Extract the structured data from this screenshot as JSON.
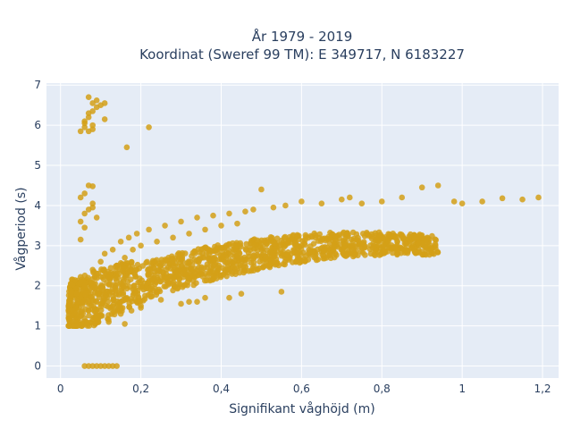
{
  "chart_data": {
    "type": "scatter",
    "title_lines": [
      "År 1979 - 2019",
      "Koordinat (Sweref 99 TM): E 349717, N 6183227"
    ],
    "xlabel": "Signifikant våghöjd (m)",
    "ylabel": "Vågperiod (s)",
    "xlim": [
      -0.035,
      1.24
    ],
    "ylim": [
      -0.3,
      7.05
    ],
    "xticks": [
      0,
      0.2,
      0.4,
      0.6,
      0.8,
      1,
      1.2
    ],
    "xtick_labels": [
      "0",
      "0,2",
      "0,4",
      "0,6",
      "0,8",
      "1",
      "1,2"
    ],
    "yticks": [
      0,
      1,
      2,
      3,
      4,
      5,
      6,
      7
    ],
    "ytick_labels": [
      "0",
      "1",
      "2",
      "3",
      "4",
      "5",
      "6",
      "7"
    ],
    "grid": true,
    "legend": "none",
    "series": [
      {
        "color": "#D4A017",
        "points": [
          [
            0.06,
            0
          ],
          [
            0.07,
            0
          ],
          [
            0.08,
            0
          ],
          [
            0.09,
            0
          ],
          [
            0.1,
            0
          ],
          [
            0.11,
            0
          ],
          [
            0.12,
            0
          ],
          [
            0.13,
            0
          ],
          [
            0.14,
            0
          ],
          [
            0.05,
            5.85
          ],
          [
            0.06,
            5.95
          ],
          [
            0.06,
            6.1
          ],
          [
            0.07,
            6.2
          ],
          [
            0.07,
            6.3
          ],
          [
            0.08,
            6.35
          ],
          [
            0.06,
            6.05
          ],
          [
            0.08,
            6.0
          ],
          [
            0.09,
            6.45
          ],
          [
            0.07,
            6.7
          ],
          [
            0.08,
            6.55
          ],
          [
            0.09,
            6.62
          ],
          [
            0.1,
            6.5
          ],
          [
            0.11,
            6.55
          ],
          [
            0.08,
            5.9
          ],
          [
            0.07,
            5.85
          ],
          [
            0.11,
            6.15
          ],
          [
            0.165,
            5.45
          ],
          [
            0.22,
            5.95
          ],
          [
            0.05,
            3.6
          ],
          [
            0.06,
            3.8
          ],
          [
            0.07,
            3.9
          ],
          [
            0.05,
            4.2
          ],
          [
            0.06,
            4.3
          ],
          [
            0.07,
            4.5
          ],
          [
            0.08,
            4.48
          ],
          [
            0.08,
            4.05
          ],
          [
            0.09,
            3.7
          ],
          [
            0.05,
            3.15
          ],
          [
            0.06,
            3.45
          ],
          [
            0.08,
            3.95
          ],
          [
            0.02,
            1.2
          ],
          [
            0.02,
            1.5
          ],
          [
            0.03,
            1.4
          ],
          [
            0.04,
            1.8
          ],
          [
            0.05,
            2.1
          ],
          [
            0.06,
            2.0
          ],
          [
            0.07,
            1.6
          ],
          [
            0.08,
            2.4
          ],
          [
            0.09,
            2.3
          ],
          [
            0.1,
            2.6
          ],
          [
            0.11,
            2.8
          ],
          [
            0.12,
            2.2
          ],
          [
            0.13,
            2.9
          ],
          [
            0.14,
            2.5
          ],
          [
            0.15,
            3.1
          ],
          [
            0.16,
            2.7
          ],
          [
            0.17,
            3.2
          ],
          [
            0.18,
            2.9
          ],
          [
            0.19,
            3.3
          ],
          [
            0.2,
            3.0
          ],
          [
            0.22,
            3.4
          ],
          [
            0.24,
            3.1
          ],
          [
            0.26,
            3.5
          ],
          [
            0.28,
            3.2
          ],
          [
            0.3,
            3.6
          ],
          [
            0.32,
            3.3
          ],
          [
            0.34,
            3.7
          ],
          [
            0.36,
            3.4
          ],
          [
            0.38,
            3.75
          ],
          [
            0.4,
            3.5
          ],
          [
            0.42,
            3.8
          ],
          [
            0.44,
            3.55
          ],
          [
            0.46,
            3.85
          ],
          [
            0.48,
            3.9
          ],
          [
            0.5,
            4.4
          ],
          [
            0.53,
            3.95
          ],
          [
            0.56,
            4.0
          ],
          [
            0.6,
            4.1
          ],
          [
            0.65,
            4.05
          ],
          [
            0.7,
            4.15
          ],
          [
            0.72,
            4.2
          ],
          [
            0.75,
            4.05
          ],
          [
            0.8,
            4.1
          ],
          [
            0.85,
            4.2
          ],
          [
            0.9,
            4.45
          ],
          [
            0.94,
            4.5
          ],
          [
            0.98,
            4.1
          ],
          [
            1.0,
            4.05
          ],
          [
            1.05,
            4.1
          ],
          [
            1.1,
            4.18
          ],
          [
            1.15,
            4.15
          ],
          [
            1.19,
            4.2
          ],
          [
            0.55,
            1.85
          ],
          [
            0.45,
            1.8
          ],
          [
            0.42,
            1.7
          ],
          [
            0.36,
            1.7
          ],
          [
            0.32,
            1.6
          ],
          [
            0.25,
            1.65
          ],
          [
            0.2,
            1.5
          ],
          [
            0.15,
            1.3
          ],
          [
            0.1,
            1.25
          ],
          [
            0.12,
            1.1
          ],
          [
            0.16,
            1.05
          ],
          [
            0.2,
            1.45
          ],
          [
            0.3,
            1.55
          ],
          [
            0.34,
            1.6
          ]
        ]
      }
    ]
  }
}
